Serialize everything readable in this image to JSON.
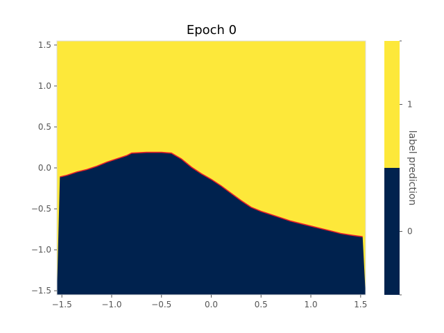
{
  "chart_data": {
    "type": "heatmap",
    "title": "Epoch 0",
    "xlabel": "",
    "ylabel": "",
    "xlim": [
      -1.55,
      1.55
    ],
    "ylim": [
      -1.55,
      1.55
    ],
    "x_ticks": [
      -1.5,
      -1.0,
      -0.5,
      0.0,
      0.5,
      1.0,
      1.5
    ],
    "x_tick_labels": [
      "−1.5",
      "−1.0",
      "−0.5",
      "0.0",
      "0.5",
      "1.0",
      "1.5"
    ],
    "y_ticks": [
      -1.5,
      -1.0,
      -0.5,
      0.0,
      0.5,
      1.0,
      1.5
    ],
    "y_tick_labels": [
      "−1.5",
      "−1.0",
      "−0.5",
      "0.0",
      "0.5",
      "1.0",
      "1.5"
    ],
    "grid": false,
    "regions": [
      {
        "label": "1",
        "color": "#FDE83A",
        "side": "above boundary"
      },
      {
        "label": "0",
        "color": "#00224E",
        "side": "below boundary"
      }
    ],
    "decision_boundary": {
      "color": "#E8212A",
      "points": [
        [
          -1.52,
          -0.11
        ],
        [
          -1.45,
          -0.09
        ],
        [
          -1.35,
          -0.05
        ],
        [
          -1.25,
          -0.02
        ],
        [
          -1.15,
          0.02
        ],
        [
          -1.05,
          0.07
        ],
        [
          -0.95,
          0.11
        ],
        [
          -0.85,
          0.15
        ],
        [
          -0.8,
          0.18
        ],
        [
          -0.65,
          0.19
        ],
        [
          -0.5,
          0.19
        ],
        [
          -0.4,
          0.18
        ],
        [
          -0.3,
          0.11
        ],
        [
          -0.2,
          0.01
        ],
        [
          -0.1,
          -0.07
        ],
        [
          0.0,
          -0.14
        ],
        [
          0.1,
          -0.22
        ],
        [
          0.2,
          -0.31
        ],
        [
          0.3,
          -0.4
        ],
        [
          0.4,
          -0.48
        ],
        [
          0.5,
          -0.53
        ],
        [
          0.6,
          -0.57
        ],
        [
          0.7,
          -0.61
        ],
        [
          0.8,
          -0.65
        ],
        [
          0.9,
          -0.68
        ],
        [
          1.0,
          -0.71
        ],
        [
          1.1,
          -0.74
        ],
        [
          1.2,
          -0.77
        ],
        [
          1.3,
          -0.8
        ],
        [
          1.4,
          -0.82
        ],
        [
          1.52,
          -0.84
        ]
      ]
    },
    "colorbar": {
      "label": "label prediction",
      "tick_labels": [
        "1",
        "0"
      ]
    }
  }
}
